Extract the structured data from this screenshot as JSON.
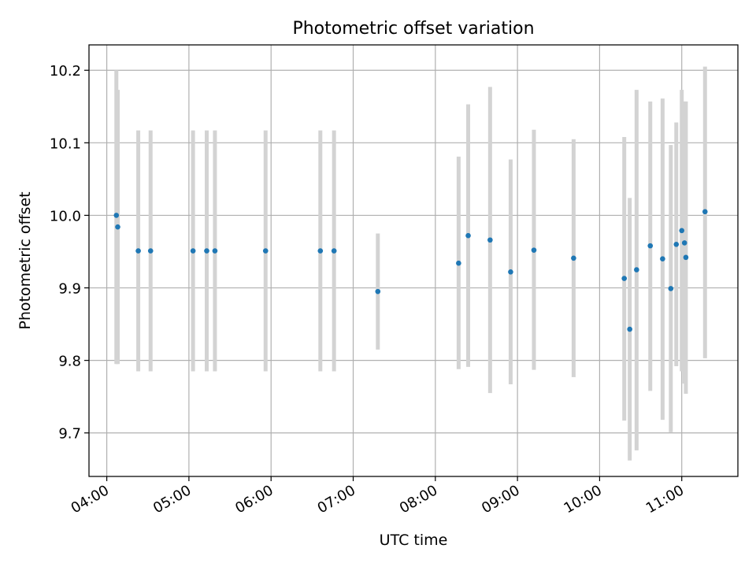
{
  "chart_data": {
    "type": "scatter",
    "title": "Photometric offset variation",
    "xlabel": "UTC time",
    "ylabel": "Photometric offset",
    "x_unit": "time of day (HH:MM)",
    "xlim": [
      "03:47",
      "11:41"
    ],
    "ylim": [
      9.64,
      10.235
    ],
    "x_ticks": [
      "04:00",
      "05:00",
      "06:00",
      "07:00",
      "08:00",
      "09:00",
      "10:00",
      "11:00"
    ],
    "y_ticks": [
      9.7,
      9.8,
      9.9,
      10.0,
      10.1,
      10.2
    ],
    "grid": true,
    "legend": "none",
    "colors": {
      "points": "#1f77b4",
      "error_bars": "#d3d3d3",
      "grid": "#b0b0b0"
    },
    "points": [
      {
        "x": "04:07",
        "y": 10.0,
        "ylow": 9.795,
        "yhigh": 10.2
      },
      {
        "x": "04:08",
        "y": 9.984,
        "ylow": 9.795,
        "yhigh": 10.173
      },
      {
        "x": "04:23",
        "y": 9.951,
        "ylow": 9.785,
        "yhigh": 10.117
      },
      {
        "x": "04:32",
        "y": 9.951,
        "ylow": 9.785,
        "yhigh": 10.117
      },
      {
        "x": "05:03",
        "y": 9.951,
        "ylow": 9.785,
        "yhigh": 10.117
      },
      {
        "x": "05:13",
        "y": 9.951,
        "ylow": 9.785,
        "yhigh": 10.117
      },
      {
        "x": "05:19",
        "y": 9.951,
        "ylow": 9.785,
        "yhigh": 10.117
      },
      {
        "x": "05:56",
        "y": 9.951,
        "ylow": 9.785,
        "yhigh": 10.117
      },
      {
        "x": "06:36",
        "y": 9.951,
        "ylow": 9.785,
        "yhigh": 10.117
      },
      {
        "x": "06:46",
        "y": 9.951,
        "ylow": 9.785,
        "yhigh": 10.117
      },
      {
        "x": "07:18",
        "y": 9.895,
        "ylow": 9.815,
        "yhigh": 9.975
      },
      {
        "x": "08:17",
        "y": 9.934,
        "ylow": 9.788,
        "yhigh": 10.081
      },
      {
        "x": "08:24",
        "y": 9.972,
        "ylow": 9.791,
        "yhigh": 10.153
      },
      {
        "x": "08:40",
        "y": 9.966,
        "ylow": 9.755,
        "yhigh": 10.177
      },
      {
        "x": "08:55",
        "y": 9.922,
        "ylow": 9.767,
        "yhigh": 10.077
      },
      {
        "x": "09:12",
        "y": 9.952,
        "ylow": 9.787,
        "yhigh": 10.118
      },
      {
        "x": "09:41",
        "y": 9.941,
        "ylow": 9.777,
        "yhigh": 10.105
      },
      {
        "x": "10:18",
        "y": 9.913,
        "ylow": 9.717,
        "yhigh": 10.108
      },
      {
        "x": "10:22",
        "y": 9.843,
        "ylow": 9.662,
        "yhigh": 10.024
      },
      {
        "x": "10:27",
        "y": 9.925,
        "ylow": 9.676,
        "yhigh": 10.173
      },
      {
        "x": "10:37",
        "y": 9.958,
        "ylow": 9.758,
        "yhigh": 10.157
      },
      {
        "x": "10:46",
        "y": 9.94,
        "ylow": 9.718,
        "yhigh": 10.161
      },
      {
        "x": "10:52",
        "y": 9.899,
        "ylow": 9.701,
        "yhigh": 10.097
      },
      {
        "x": "10:56",
        "y": 9.96,
        "ylow": 9.792,
        "yhigh": 10.128
      },
      {
        "x": "11:00",
        "y": 9.979,
        "ylow": 9.785,
        "yhigh": 10.173
      },
      {
        "x": "11:02",
        "y": 9.962,
        "ylow": 9.768,
        "yhigh": 10.157
      },
      {
        "x": "11:03",
        "y": 9.942,
        "ylow": 9.754,
        "yhigh": 10.157
      },
      {
        "x": "11:17",
        "y": 10.005,
        "ylow": 9.803,
        "yhigh": 10.205
      }
    ]
  }
}
